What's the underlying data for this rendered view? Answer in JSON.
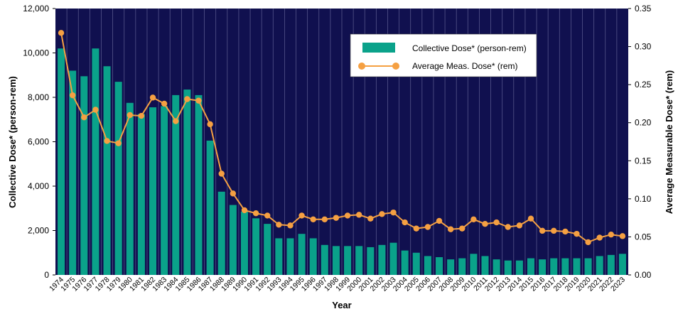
{
  "colors": {
    "plot_background": "#10104f",
    "bar": "#0aa28a",
    "line": "#f5a042",
    "gridline": "#55558a"
  },
  "chart_data": {
    "type": "bar",
    "xlabel": "Year",
    "ylabel": "Collective Dose* (person-rem)",
    "y2label": "Average Measurable Dose* (rem)",
    "ylim": [
      0,
      12000
    ],
    "y2lim": [
      0,
      0.35
    ],
    "yticks": [
      "0",
      "2,000",
      "4,000",
      "6,000",
      "8,000",
      "10,000",
      "12,000"
    ],
    "y2ticks": [
      "0.00",
      "0.05",
      "0.10",
      "0.15",
      "0.20",
      "0.25",
      "0.30",
      "0.35"
    ],
    "legend_position": "top-right",
    "categories": [
      "1974",
      "1975",
      "1976",
      "1977",
      "1978",
      "1979",
      "1980",
      "1981",
      "1982",
      "1983",
      "1984",
      "1985",
      "1986",
      "1987",
      "1988",
      "1989",
      "1990",
      "1991",
      "1992",
      "1993",
      "1994",
      "1995",
      "1996",
      "1997",
      "1998",
      "1999",
      "2000",
      "2001",
      "2002",
      "2003",
      "2004",
      "2005",
      "2006",
      "2007",
      "2008",
      "2009",
      "2010",
      "2011",
      "2012",
      "2013",
      "2014",
      "2015",
      "2016",
      "2017",
      "2018",
      "2019",
      "2020",
      "2021",
      "2022",
      "2023"
    ],
    "series": [
      {
        "name": "Collective Dose* (person-rem)",
        "type": "bar",
        "axis": "left",
        "values": [
          10200,
          9200,
          8950,
          10200,
          9400,
          8700,
          7750,
          7250,
          7550,
          7600,
          8100,
          8350,
          8100,
          6050,
          3750,
          3150,
          2850,
          2550,
          2300,
          1650,
          1650,
          1850,
          1650,
          1350,
          1300,
          1300,
          1300,
          1250,
          1350,
          1450,
          1100,
          1000,
          850,
          800,
          700,
          750,
          950,
          850,
          700,
          650,
          650,
          750,
          700,
          750,
          750,
          750,
          750,
          850,
          900,
          950
        ]
      },
      {
        "name": "Average Meas. Dose* (rem)",
        "type": "line",
        "axis": "right",
        "values": [
          0.318,
          0.236,
          0.207,
          0.217,
          0.176,
          0.173,
          0.21,
          0.209,
          0.233,
          0.225,
          0.202,
          0.231,
          0.229,
          0.198,
          0.133,
          0.107,
          0.085,
          0.081,
          0.078,
          0.066,
          0.065,
          0.078,
          0.073,
          0.073,
          0.075,
          0.078,
          0.079,
          0.074,
          0.08,
          0.082,
          0.069,
          0.061,
          0.063,
          0.071,
          0.06,
          0.061,
          0.073,
          0.067,
          0.069,
          0.063,
          0.065,
          0.074,
          0.058,
          0.058,
          0.057,
          0.054,
          0.043,
          0.049,
          0.053,
          0.051
        ]
      }
    ]
  }
}
